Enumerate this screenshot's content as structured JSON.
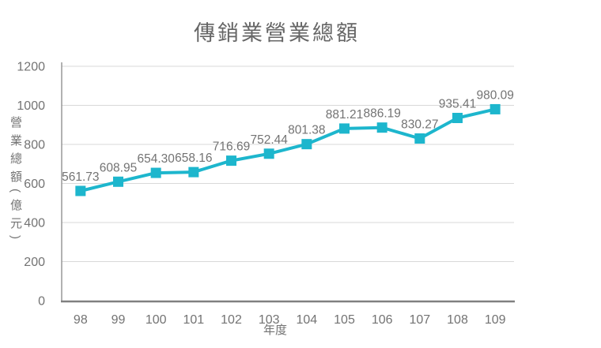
{
  "title": "傳銷業營業總額",
  "chart_data": {
    "type": "line",
    "title": "傳銷業營業總額",
    "xlabel": "年度",
    "ylabel": "營業總額(億元)",
    "categories": [
      "98",
      "99",
      "100",
      "101",
      "102",
      "103",
      "104",
      "105",
      "106",
      "107",
      "108",
      "109"
    ],
    "values": [
      561.73,
      608.95,
      654.3,
      658.16,
      716.69,
      752.44,
      801.38,
      881.21,
      886.19,
      830.27,
      935.41,
      980.09
    ],
    "labels": [
      "561.73",
      "608.95",
      "654.30",
      "658.16",
      "716.69",
      "752.44",
      "801.38",
      "881.21",
      "886.19",
      "830.27",
      "935.41",
      "980.09"
    ],
    "ylim": [
      0,
      1200
    ],
    "yticks": [
      0,
      200,
      400,
      600,
      800,
      1000,
      1200
    ],
    "grid": true,
    "legend": "none",
    "marker": "square"
  },
  "colors": {
    "series_line": "#1db6cd",
    "marker_fill": "#1db6cd",
    "gridline": "#d9d9d9",
    "x_axis_line": "#808080",
    "y_axis_line": "#898989",
    "title_text": "#666666",
    "tick_text": "#737373",
    "data_label_text": "#737373"
  }
}
